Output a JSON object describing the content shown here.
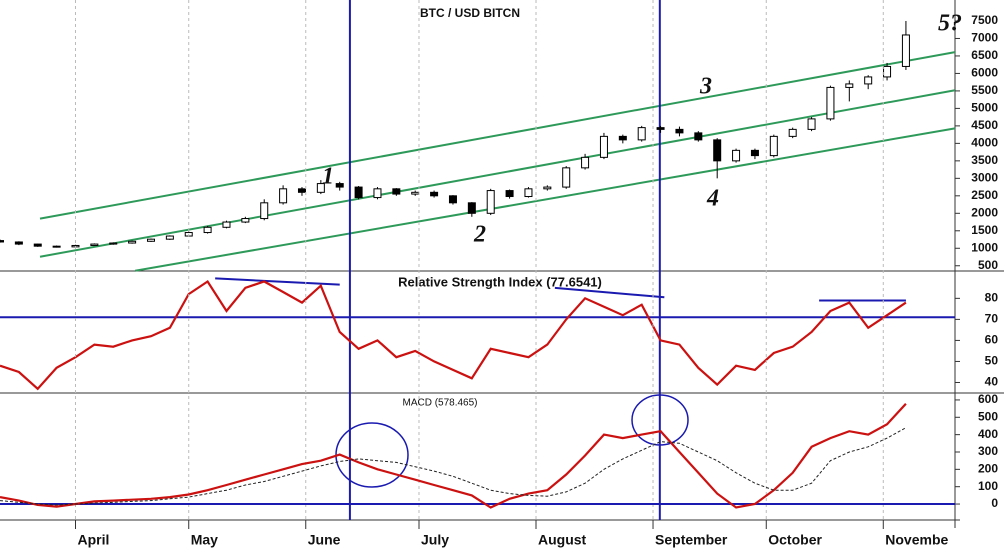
{
  "chart_data": [
    {
      "type": "candlestick",
      "title": "BTC / USD BITCN",
      "x": [
        0,
        5,
        10,
        15,
        20,
        25,
        30,
        35,
        40,
        45,
        50,
        55,
        60,
        65,
        70,
        75,
        80,
        85,
        90,
        95,
        100,
        105,
        110,
        115,
        120,
        125,
        130,
        135,
        140,
        145,
        150,
        155,
        160,
        165,
        170,
        175,
        180,
        185,
        190,
        195,
        200,
        205,
        210,
        215,
        220,
        225,
        230,
        235,
        240
      ],
      "open": [
        1220,
        1180,
        1120,
        1060,
        1040,
        1080,
        1120,
        1150,
        1200,
        1260,
        1350,
        1450,
        1600,
        1750,
        1850,
        2300,
        2700,
        2600,
        2850,
        2750,
        2450,
        2700,
        2550,
        2600,
        2500,
        2300,
        2000,
        2650,
        2480,
        2700,
        2750,
        3300,
        3600,
        4200,
        4100,
        4450,
        4400,
        4300,
        4100,
        3500,
        3800,
        3650,
        4200,
        4400,
        4700,
        5600,
        5700,
        5900,
        6200
      ],
      "high": [
        1250,
        1200,
        1130,
        1080,
        1100,
        1140,
        1170,
        1220,
        1280,
        1370,
        1480,
        1640,
        1790,
        1900,
        2400,
        2800,
        2750,
        2950,
        2900,
        2780,
        2750,
        2720,
        2650,
        2650,
        2520,
        2320,
        2700,
        2680,
        2750,
        2800,
        3350,
        3700,
        4300,
        4250,
        4500,
        4500,
        4480,
        4350,
        4150,
        3850,
        3850,
        4250,
        4450,
        4750,
        5650,
        5800,
        5950,
        6300,
        7500
      ],
      "low": [
        1160,
        1090,
        1040,
        1020,
        1030,
        1070,
        1100,
        1130,
        1180,
        1240,
        1330,
        1420,
        1570,
        1720,
        1800,
        2250,
        2500,
        2550,
        2650,
        2400,
        2400,
        2500,
        2500,
        2450,
        2250,
        1900,
        1950,
        2420,
        2450,
        2650,
        2700,
        3250,
        3550,
        4000,
        4050,
        4300,
        4200,
        4050,
        3000,
        3450,
        3550,
        3600,
        4150,
        4350,
        4650,
        5200,
        5550,
        5800,
        6100
      ],
      "close": [
        1180,
        1120,
        1060,
        1040,
        1080,
        1120,
        1150,
        1200,
        1260,
        1350,
        1450,
        1600,
        1750,
        1850,
        2300,
        2700,
        2600,
        2850,
        2750,
        2450,
        2700,
        2550,
        2600,
        2500,
        2300,
        2000,
        2650,
        2480,
        2700,
        2750,
        3300,
        3600,
        4200,
        4100,
        4450,
        4400,
        4300,
        4100,
        3500,
        3800,
        3650,
        4200,
        4400,
        4700,
        5600,
        5700,
        5900,
        6200,
        7100
      ],
      "xlim": [
        0,
        253
      ],
      "ylim": [
        350,
        8100
      ],
      "yticks": [
        500,
        1000,
        1500,
        2000,
        2500,
        3000,
        3500,
        4000,
        4500,
        5000,
        5500,
        6000,
        6500,
        7000,
        7500
      ],
      "trendlines": [
        {
          "color": "#2e9a5a",
          "x": [
            10.6,
            253
          ],
          "y": [
            1848,
            6610
          ]
        },
        {
          "color": "#2e9a5a",
          "x": [
            10.6,
            253
          ],
          "y": [
            758,
            5520
          ]
        },
        {
          "color": "#2e9a5a",
          "x": [
            35.8,
            253
          ],
          "y": [
            357,
            4430
          ]
        }
      ],
      "vlines": {
        "color": "#1a1ab0",
        "x": [
          92.7,
          174.8
        ]
      },
      "annotations": [
        "1",
        "2",
        "3",
        "4",
        "5?"
      ]
    },
    {
      "type": "line",
      "title": "Relative Strength Index (77.6541)",
      "x": [
        0,
        5,
        10,
        15,
        20,
        25,
        30,
        35,
        40,
        45,
        50,
        55,
        60,
        65,
        70,
        75,
        80,
        85,
        90,
        95,
        100,
        105,
        110,
        115,
        120,
        125,
        130,
        135,
        140,
        145,
        150,
        155,
        160,
        165,
        170,
        175,
        180,
        185,
        190,
        195,
        200,
        205,
        210,
        215,
        220,
        225,
        230,
        235,
        240
      ],
      "series": [
        {
          "color": "#cc1111",
          "values": [
            48,
            45,
            37,
            47,
            52,
            58,
            57,
            60,
            62,
            66,
            82,
            88,
            74,
            85,
            88,
            83,
            78,
            86,
            64,
            56,
            60,
            52,
            55,
            50,
            46,
            42,
            56,
            54,
            52,
            58,
            70,
            80,
            76,
            72,
            77,
            60,
            58,
            47,
            39,
            48,
            46,
            54,
            57,
            64,
            74,
            78,
            66,
            72,
            78
          ]
        }
      ],
      "xlim": [
        0,
        253
      ],
      "ylim": [
        35,
        93
      ],
      "yticks": [
        40,
        50,
        60,
        70,
        80
      ],
      "hlines": {
        "color": "#1a1ab0",
        "y": [
          71
        ]
      },
      "trendlines": [
        {
          "color": "#1a1ab0",
          "x": [
            57,
            90
          ],
          "y": [
            89.5,
            86.5
          ]
        },
        {
          "color": "#1a1ab0",
          "x": [
            147,
            176
          ],
          "y": [
            85,
            80.5
          ]
        },
        {
          "color": "#1a1ab0",
          "x": [
            217,
            240
          ],
          "y": [
            79,
            79
          ]
        }
      ]
    },
    {
      "type": "line",
      "title": "MACD (578.465)",
      "x": [
        0,
        5,
        10,
        15,
        20,
        25,
        30,
        35,
        40,
        45,
        50,
        55,
        60,
        65,
        70,
        75,
        80,
        85,
        90,
        95,
        100,
        105,
        110,
        115,
        120,
        125,
        130,
        135,
        140,
        145,
        150,
        155,
        160,
        165,
        170,
        175,
        180,
        185,
        190,
        195,
        200,
        205,
        210,
        215,
        220,
        225,
        230,
        235,
        240
      ],
      "series": [
        {
          "color": "#cc1111",
          "values": [
            40,
            20,
            -5,
            -15,
            0,
            15,
            20,
            25,
            30,
            40,
            55,
            80,
            110,
            140,
            170,
            200,
            230,
            250,
            285,
            240,
            200,
            170,
            140,
            110,
            80,
            50,
            -20,
            30,
            60,
            80,
            170,
            280,
            400,
            380,
            400,
            420,
            300,
            180,
            60,
            -20,
            0,
            80,
            180,
            330,
            380,
            420,
            400,
            460,
            578.465
          ]
        },
        {
          "color": "#222222",
          "dash": true,
          "values": [
            20,
            10,
            0,
            -5,
            0,
            5,
            10,
            15,
            20,
            30,
            40,
            60,
            80,
            110,
            130,
            160,
            190,
            220,
            245,
            260,
            250,
            240,
            215,
            190,
            160,
            120,
            80,
            60,
            50,
            45,
            70,
            120,
            200,
            260,
            310,
            360,
            350,
            300,
            250,
            180,
            120,
            80,
            80,
            120,
            250,
            300,
            330,
            380,
            440
          ]
        }
      ],
      "xlim": [
        0,
        253
      ],
      "ylim": [
        -92,
        640
      ],
      "yticks": [
        0,
        100,
        200,
        300,
        400,
        500,
        600
      ],
      "hlines": {
        "color": "#1a1ab0",
        "y": [
          0
        ]
      },
      "xgrid": true,
      "xticks": [
        {
          "value": 20,
          "label": "April"
        },
        {
          "value": 50,
          "label": "May"
        },
        {
          "value": 81,
          "label": "June"
        },
        {
          "value": 111,
          "label": "July"
        },
        {
          "value": 142,
          "label": "August"
        },
        {
          "value": 173,
          "label": "September"
        },
        {
          "value": 203,
          "label": "October"
        },
        {
          "value": 234,
          "label": "Novembe"
        }
      ]
    }
  ]
}
